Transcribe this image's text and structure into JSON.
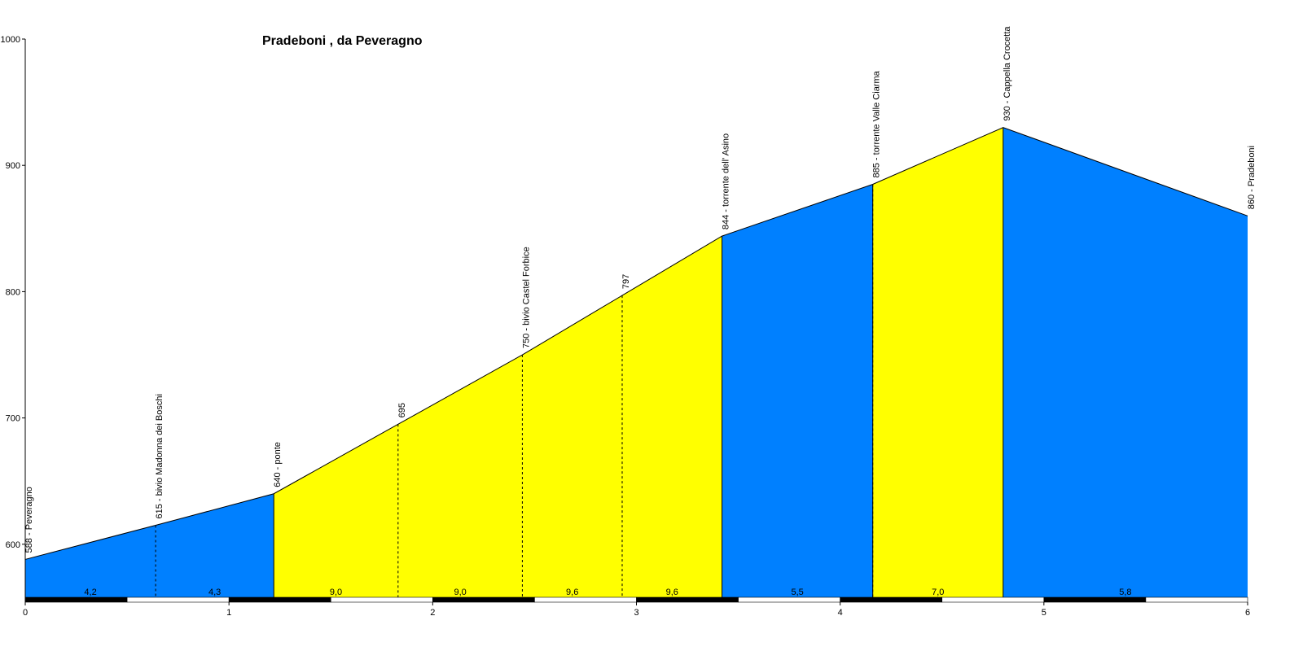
{
  "chart_data": {
    "type": "area",
    "title": "Pradeboni , da Peveragno",
    "xlabel": "",
    "ylabel": "",
    "xlim": [
      0,
      6
    ],
    "ylim": [
      558,
      1000
    ],
    "x_ticks": [
      0,
      1,
      2,
      3,
      4,
      5,
      6
    ],
    "y_ticks": [
      600,
      700,
      800,
      900,
      1000
    ],
    "grid": false,
    "colors": {
      "segment_a": "#0080ff",
      "segment_b": "#ffff00",
      "outline": "#000000",
      "bar_dark": "#000000",
      "bar_light": "#ffffff"
    },
    "points": [
      {
        "x": 0.0,
        "y": 588,
        "label": "588 - Peveragno"
      },
      {
        "x": 0.64,
        "y": 615,
        "label": "615 - bivio Madonna dei Boschi"
      },
      {
        "x": 1.22,
        "y": 640,
        "label": "640 - ponte"
      },
      {
        "x": 1.83,
        "y": 695,
        "label": "695"
      },
      {
        "x": 2.44,
        "y": 750,
        "label": "750 - bivio Castel Forbice"
      },
      {
        "x": 2.93,
        "y": 797,
        "label": "797"
      },
      {
        "x": 3.42,
        "y": 844,
        "label": "844 - torrente dell' Asino"
      },
      {
        "x": 4.16,
        "y": 885,
        "label": "885 - torrente Valle Ciarma"
      },
      {
        "x": 4.8,
        "y": 930,
        "label": "930 - Cappella Crocetta"
      },
      {
        "x": 6.0,
        "y": 860,
        "label": "860 - Pradeboni"
      }
    ],
    "segments": [
      {
        "from": 0.0,
        "to": 0.64,
        "grade": "4,2",
        "color": "segment_a"
      },
      {
        "from": 0.64,
        "to": 1.22,
        "grade": "4,3",
        "color": "segment_a"
      },
      {
        "from": 1.22,
        "to": 1.83,
        "grade": "9,0",
        "color": "segment_b"
      },
      {
        "from": 1.83,
        "to": 2.44,
        "grade": "9,0",
        "color": "segment_b"
      },
      {
        "from": 2.44,
        "to": 2.93,
        "grade": "9,6",
        "color": "segment_b"
      },
      {
        "from": 2.93,
        "to": 3.42,
        "grade": "9,6",
        "color": "segment_b"
      },
      {
        "from": 3.42,
        "to": 4.16,
        "grade": "5,5",
        "color": "segment_a"
      },
      {
        "from": 4.16,
        "to": 4.8,
        "grade": "7,0",
        "color": "segment_b"
      },
      {
        "from": 4.8,
        "to": 6.0,
        "grade": "5,8",
        "color": "segment_a"
      }
    ],
    "dashed_at": [
      0.64,
      1.83,
      2.44,
      2.93,
      4.16
    ]
  }
}
